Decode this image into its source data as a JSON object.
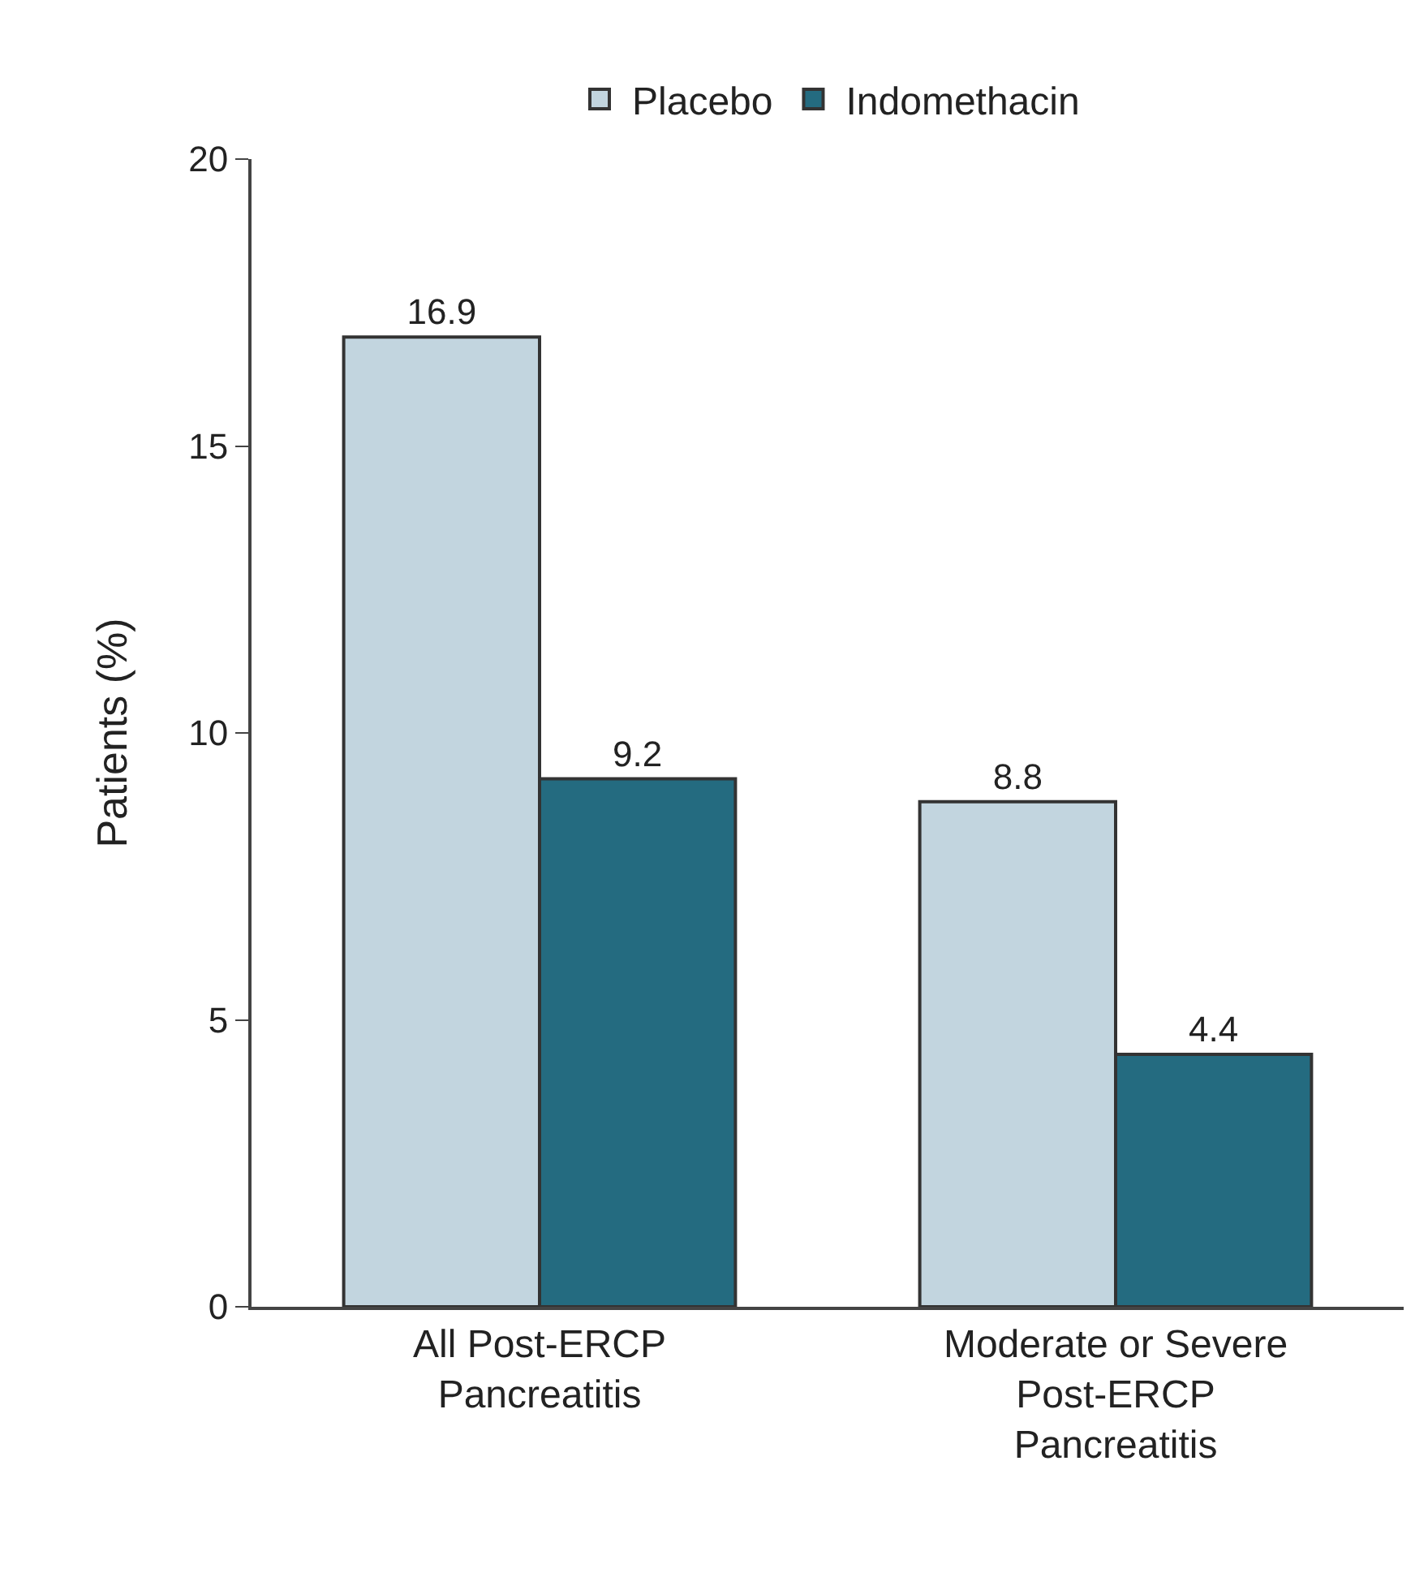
{
  "chart_data": {
    "type": "bar",
    "ylabel": "Patients (%)",
    "categories": [
      "All Post-ERCP\nPancreatitis",
      "Moderate or Severe\nPost-ERCP\nPancreatitis"
    ],
    "series": [
      {
        "name": "Placebo",
        "color": "#c2d5df",
        "values": [
          16.9,
          8.8
        ]
      },
      {
        "name": "Indomethacin",
        "color": "#246b80",
        "values": [
          9.2,
          4.4
        ]
      }
    ],
    "ylim": [
      0,
      20
    ],
    "yticks": [
      0,
      5,
      10,
      15,
      20
    ],
    "grid": false,
    "legend": "top",
    "data_labels": true
  }
}
